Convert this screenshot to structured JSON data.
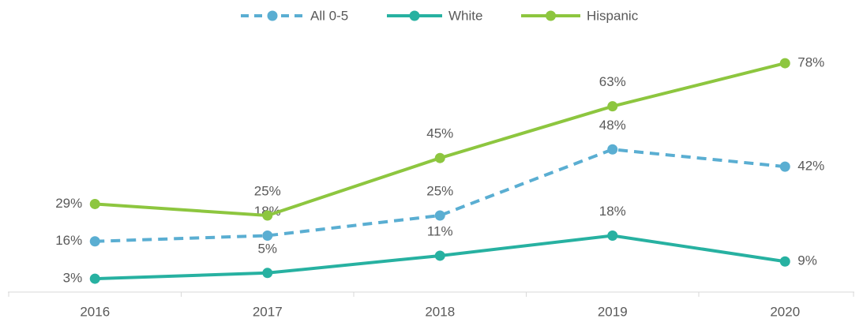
{
  "chart_data": {
    "type": "line",
    "categories": [
      "2016",
      "2017",
      "2018",
      "2019",
      "2020"
    ],
    "series": [
      {
        "name": "All 0-5",
        "color": "#5aaed2",
        "dashed": true,
        "values": [
          16,
          18,
          25,
          48,
          42
        ],
        "value_labels": [
          "16%",
          "18%",
          "25%",
          "48%",
          "42%"
        ]
      },
      {
        "name": "White",
        "color": "#27b1a1",
        "values": [
          3,
          5,
          11,
          18,
          9
        ],
        "value_labels": [
          "3%",
          "5%",
          "11%",
          "18%",
          "9%"
        ]
      },
      {
        "name": "Hispanic",
        "color": "#8dc63f",
        "values": [
          29,
          25,
          45,
          63,
          78
        ],
        "value_labels": [
          "29%",
          "25%",
          "45%",
          "63%",
          "78%"
        ]
      }
    ],
    "ylim": [
      0,
      90
    ],
    "legend": "top"
  }
}
